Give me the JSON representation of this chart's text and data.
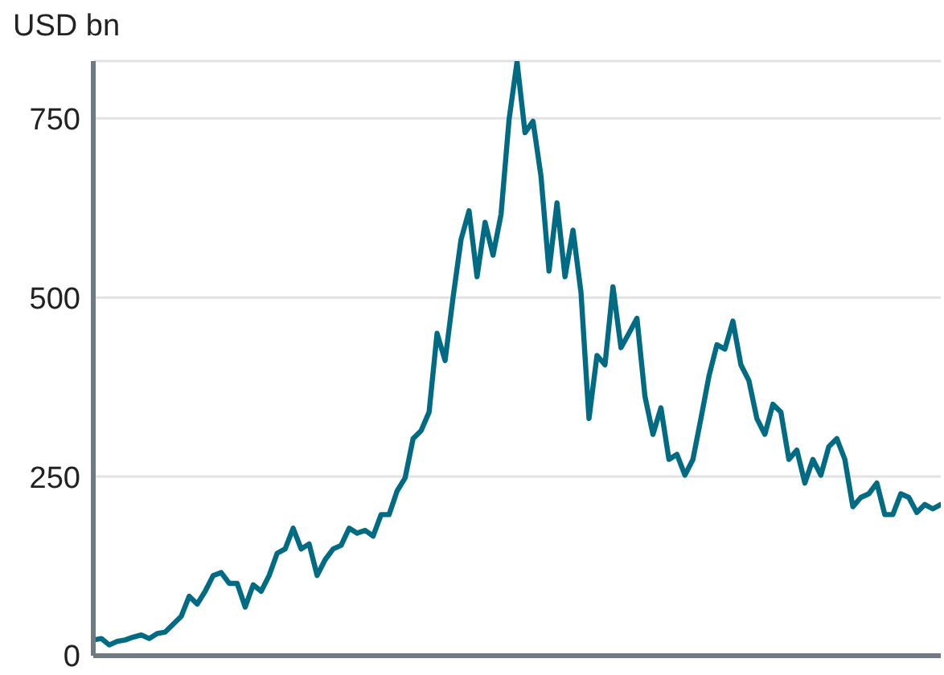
{
  "chart_data": {
    "type": "line",
    "ylabel": "USD bn",
    "ylim": [
      0,
      830
    ],
    "yticks": [
      0,
      250,
      500,
      750
    ],
    "grid": "y",
    "tick_labels": "y",
    "marker": "none",
    "line_style": "solid",
    "categories": [
      null,
      null,
      null,
      null,
      null,
      null,
      null,
      null,
      null,
      null,
      null,
      null,
      null,
      null,
      null,
      null,
      null,
      null,
      null,
      null,
      null,
      null,
      null,
      null,
      null,
      null,
      null,
      null,
      null,
      null,
      null,
      null,
      null,
      null,
      null,
      null,
      null,
      null,
      null,
      null,
      null,
      null,
      null,
      null,
      null,
      null,
      null,
      null,
      null,
      null,
      null,
      null,
      null,
      null,
      null,
      null,
      null,
      null,
      null,
      null,
      null,
      null,
      null,
      null,
      null,
      null,
      null,
      null,
      null,
      null,
      null,
      null,
      null,
      null,
      null,
      null,
      null,
      null,
      null,
      null,
      null,
      null,
      null,
      null,
      null,
      null,
      null,
      null,
      null,
      null,
      null,
      null,
      null,
      null,
      null,
      null,
      null,
      null,
      null,
      null,
      null,
      null,
      null,
      null,
      null,
      null,
      null
    ],
    "series": [
      {
        "color": "#006b82",
        "values": [
          22,
          24,
          15,
          20,
          22,
          26,
          29,
          24,
          31,
          33,
          44,
          55,
          83,
          72,
          90,
          112,
          116,
          101,
          101,
          68,
          99,
          90,
          112,
          143,
          149,
          178,
          149,
          156,
          112,
          134,
          149,
          154,
          178,
          171,
          175,
          167,
          197,
          197,
          230,
          248,
          303,
          314,
          340,
          450,
          412,
          500,
          581,
          621,
          529,
          605,
          559,
          616,
          748,
          829,
          730,
          746,
          669,
          537,
          632,
          529,
          594,
          507,
          331,
          419,
          406,
          515,
          430,
          450,
          471,
          362,
          309,
          346,
          274,
          281,
          252,
          274,
          331,
          390,
          434,
          428,
          467,
          406,
          384,
          331,
          309,
          351,
          340,
          274,
          287,
          241,
          274,
          252,
          292,
          303,
          274,
          208,
          221,
          226,
          241,
          197,
          197,
          226,
          221,
          200,
          211,
          205,
          211
        ]
      }
    ]
  }
}
